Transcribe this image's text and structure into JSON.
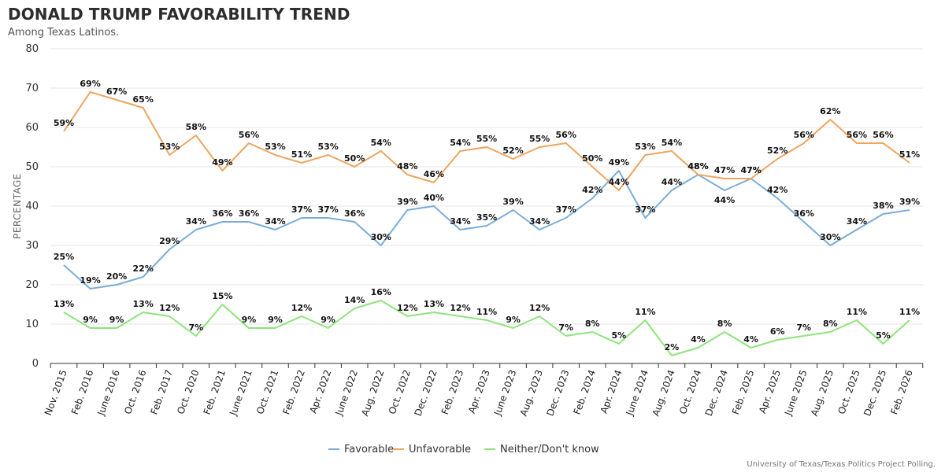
{
  "chart_data": {
    "type": "line",
    "title": "DONALD TRUMP FAVORABILITY TREND",
    "subtitle": "Among Texas Latinos.",
    "ylabel": "PERCENTAGE",
    "xlabel": "",
    "ylim": [
      0,
      80
    ],
    "yticks": [
      0,
      10,
      20,
      30,
      40,
      50,
      60,
      70,
      80
    ],
    "grid": true,
    "legend_position": "bottom",
    "categories": [
      "Nov. 2015",
      "Feb. 2016",
      "June 2016",
      "Oct. 2016",
      "Feb. 2017",
      "Oct. 2020",
      "Feb. 2021",
      "June 2021",
      "Oct. 2021",
      "Feb. 2022",
      "Apr. 2022",
      "June 2022",
      "Aug. 2022",
      "Oct. 2022",
      "Dec. 2022",
      "Feb. 2023",
      "Apr. 2023",
      "June 2023",
      "Aug. 2023",
      "Dec. 2023",
      "Feb. 2024",
      "Apr. 2024",
      "June 2024",
      "Aug. 2024",
      "Oct. 2024",
      "Dec. 2024",
      "Feb. 2025",
      "Apr. 2025",
      "June 2025",
      "Aug. 2025",
      "Oct. 2025",
      "Dec. 2025",
      "Feb. 2026"
    ],
    "series": [
      {
        "name": "Favorable",
        "color": "#7aadd9",
        "values": [
          25,
          19,
          20,
          22,
          29,
          34,
          36,
          36,
          34,
          37,
          37,
          36,
          30,
          39,
          40,
          34,
          35,
          39,
          34,
          37,
          42,
          49,
          37,
          44,
          48,
          44,
          47,
          42,
          36,
          30,
          34,
          38,
          39
        ],
        "label_pos": [
          "above",
          "above",
          "above",
          "above",
          "above",
          "above",
          "above",
          "above",
          "above",
          "above",
          "above",
          "above",
          "above",
          "above",
          "above",
          "above",
          "above",
          "above",
          "above",
          "above",
          "above",
          "above",
          "above",
          "above",
          "above",
          "below",
          "above",
          "above",
          "above",
          "above",
          "above",
          "above",
          "above"
        ]
      },
      {
        "name": "Unfavorable",
        "color": "#eda55e",
        "values": [
          59,
          69,
          67,
          65,
          53,
          58,
          49,
          56,
          53,
          51,
          53,
          50,
          54,
          48,
          46,
          54,
          55,
          52,
          55,
          56,
          50,
          44,
          53,
          54,
          48,
          47,
          47,
          52,
          56,
          62,
          56,
          56,
          51
        ],
        "label_pos": [
          "above",
          "above",
          "above",
          "above",
          "above",
          "above",
          "above",
          "above",
          "above",
          "above",
          "above",
          "above",
          "above",
          "above",
          "above",
          "above",
          "above",
          "above",
          "above",
          "above",
          "above",
          "above",
          "above",
          "above",
          "above",
          "above",
          "above",
          "above",
          "above",
          "above",
          "above",
          "above",
          "above"
        ]
      },
      {
        "name": "Neither/Don't know",
        "color": "#8ee37e",
        "values": [
          13,
          9,
          9,
          13,
          12,
          7,
          15,
          9,
          9,
          12,
          9,
          14,
          16,
          12,
          13,
          12,
          11,
          9,
          12,
          7,
          8,
          5,
          11,
          2,
          4,
          8,
          4,
          6,
          7,
          8,
          11,
          5,
          11
        ],
        "label_pos": [
          "above",
          "above",
          "above",
          "above",
          "above",
          "above",
          "above",
          "above",
          "above",
          "above",
          "above",
          "above",
          "above",
          "above",
          "above",
          "above",
          "above",
          "above",
          "above",
          "above",
          "above",
          "above",
          "above",
          "above",
          "above",
          "above",
          "above",
          "above",
          "above",
          "above",
          "above",
          "above",
          "above"
        ]
      }
    ],
    "value_suffix": "%",
    "source": "University of Texas/Texas Politics Project Polling."
  }
}
